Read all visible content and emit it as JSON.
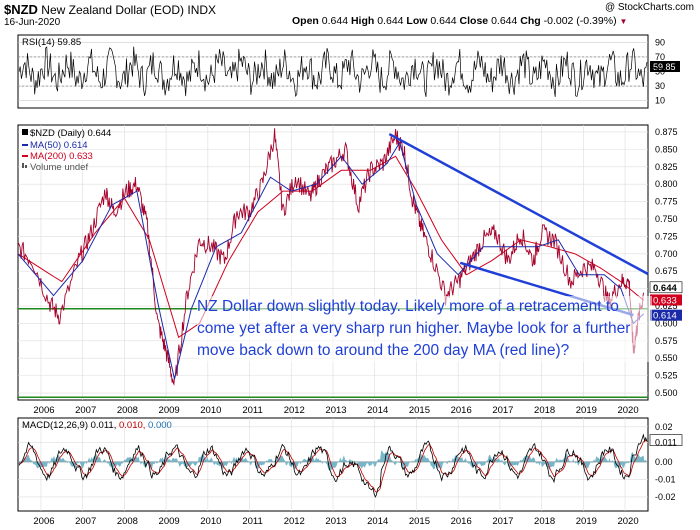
{
  "header": {
    "symbol": "$NZD",
    "name": "New Zealand Dollar (EOD)",
    "exchange": "INDX",
    "date": "16-Jun-2020",
    "open_label": "Open",
    "open": "0.644",
    "high_label": "High",
    "high": "0.644",
    "low_label": "Low",
    "low": "0.644",
    "close_label": "Close",
    "close": "0.644",
    "chg_label": "Chg",
    "chg": "-0.002 (-0.39%)",
    "brand": "@ StockCharts.com"
  },
  "annotation": "NZ Dollar down slightly today. Likely more of a retracement to come yet after a very sharp run higher. Maybe look for a further move back down to around the 200 day MA (red line)?",
  "colors": {
    "price": "#a5002a",
    "ma50": "#1a2aa8",
    "ma200": "#d0001f",
    "trend": "#1f3fd6",
    "support": "#1e8a1e",
    "rsi": "#000000",
    "macd": "#000000",
    "signal": "#c00000",
    "macd_fill": "#76b6c8"
  },
  "chart_data": [
    {
      "type": "line",
      "name": "rsi-panel",
      "legend": "RSI(14) 59.85",
      "yticks": [
        90,
        70,
        50,
        30,
        10
      ],
      "ylim": [
        0,
        100
      ],
      "last_value": "59.85",
      "reference_lines": [
        70,
        30
      ]
    },
    {
      "type": "line",
      "name": "price-panel",
      "legend": [
        "$NZD (Daily) 0.644",
        "MA(50) 0.614",
        "MA(200) 0.633",
        "Volume undef"
      ],
      "x_ticks": [
        "2006",
        "2007",
        "2008",
        "2009",
        "2010",
        "2011",
        "2012",
        "2013",
        "2014",
        "2015",
        "2016",
        "2017",
        "2018",
        "2019",
        "2020"
      ],
      "ylim": [
        0.49,
        0.885
      ],
      "yticks": [
        "0.875",
        "0.850",
        "0.825",
        "0.800",
        "0.775",
        "0.750",
        "0.725",
        "0.700",
        "0.675",
        "0.650",
        "0.625",
        "0.600",
        "0.575",
        "0.550",
        "0.525",
        "0.500"
      ],
      "value_tags": [
        {
          "label": "0.644",
          "value": 0.644
        },
        {
          "label": "0.633",
          "value": 0.633
        },
        {
          "label": "0.614",
          "value": 0.614
        }
      ],
      "series": [
        {
          "name": "$NZD",
          "x": [
            2005.45,
            2005.8,
            2006.2,
            2006.45,
            2006.9,
            2007.2,
            2007.55,
            2007.75,
            2008.05,
            2008.3,
            2008.55,
            2008.8,
            2009.0,
            2009.2,
            2009.5,
            2009.8,
            2010.1,
            2010.4,
            2010.7,
            2011.0,
            2011.3,
            2011.6,
            2011.8,
            2012.1,
            2012.45,
            2012.7,
            2013.0,
            2013.3,
            2013.6,
            2013.9,
            2014.2,
            2014.5,
            2014.7,
            2014.9,
            2015.1,
            2015.35,
            2015.7,
            2016.0,
            2016.3,
            2016.6,
            2016.9,
            2017.2,
            2017.5,
            2017.8,
            2018.0,
            2018.3,
            2018.7,
            2019.0,
            2019.3,
            2019.6,
            2019.9,
            2020.1,
            2020.2,
            2020.3,
            2020.45
          ],
          "y": [
            0.71,
            0.69,
            0.63,
            0.61,
            0.69,
            0.73,
            0.79,
            0.76,
            0.79,
            0.8,
            0.74,
            0.6,
            0.56,
            0.51,
            0.64,
            0.72,
            0.71,
            0.69,
            0.76,
            0.76,
            0.8,
            0.87,
            0.76,
            0.81,
            0.78,
            0.81,
            0.83,
            0.85,
            0.77,
            0.82,
            0.83,
            0.87,
            0.85,
            0.78,
            0.74,
            0.7,
            0.64,
            0.66,
            0.69,
            0.72,
            0.73,
            0.69,
            0.73,
            0.69,
            0.73,
            0.72,
            0.66,
            0.68,
            0.68,
            0.63,
            0.66,
            0.66,
            0.56,
            0.6,
            0.644
          ]
        },
        {
          "name": "MA(50)",
          "x": [
            2005.45,
            2006.3,
            2007.0,
            2007.7,
            2008.3,
            2008.8,
            2009.2,
            2009.6,
            2010.2,
            2010.8,
            2011.5,
            2012.0,
            2012.6,
            2013.2,
            2013.7,
            2014.3,
            2014.6,
            2015.0,
            2015.5,
            2016.0,
            2016.6,
            2017.3,
            2017.9,
            2018.4,
            2018.9,
            2019.5,
            2019.9,
            2020.2,
            2020.45
          ],
          "y": [
            0.7,
            0.64,
            0.69,
            0.77,
            0.79,
            0.63,
            0.52,
            0.62,
            0.71,
            0.73,
            0.81,
            0.79,
            0.8,
            0.84,
            0.8,
            0.83,
            0.86,
            0.77,
            0.7,
            0.67,
            0.71,
            0.71,
            0.71,
            0.72,
            0.67,
            0.67,
            0.65,
            0.6,
            0.614
          ]
        },
        {
          "name": "MA(200)",
          "x": [
            2005.45,
            2006.5,
            2007.3,
            2008.0,
            2008.6,
            2009.3,
            2009.8,
            2010.5,
            2011.2,
            2011.8,
            2012.5,
            2013.2,
            2013.9,
            2014.5,
            2015.0,
            2015.6,
            2016.2,
            2016.8,
            2017.5,
            2018.2,
            2018.8,
            2019.4,
            2019.9,
            2020.45
          ],
          "y": [
            0.7,
            0.66,
            0.73,
            0.78,
            0.72,
            0.58,
            0.6,
            0.69,
            0.76,
            0.79,
            0.79,
            0.82,
            0.82,
            0.84,
            0.79,
            0.72,
            0.67,
            0.69,
            0.72,
            0.71,
            0.7,
            0.68,
            0.66,
            0.633
          ]
        }
      ],
      "trendlines": [
        {
          "from": [
            2014.35,
            0.872
          ],
          "to": [
            2020.55,
            0.671
          ]
        },
        {
          "from": [
            2016.05,
            0.687
          ],
          "to": [
            2020.2,
            0.612
          ]
        }
      ],
      "support_lines": [
        0.621,
        0.494
      ]
    },
    {
      "type": "line",
      "name": "macd-panel",
      "legend": [
        "MACD(12,26,9) 0.011,",
        "0.010,",
        "0.000"
      ],
      "yticks": [
        "0.02",
        "0.011",
        "0.00",
        "-0.01",
        "-0.02"
      ],
      "ylim": [
        -0.028,
        0.025
      ],
      "last_values": {
        "macd": 0.011,
        "signal": 0.01,
        "histogram": 0.0
      }
    }
  ]
}
